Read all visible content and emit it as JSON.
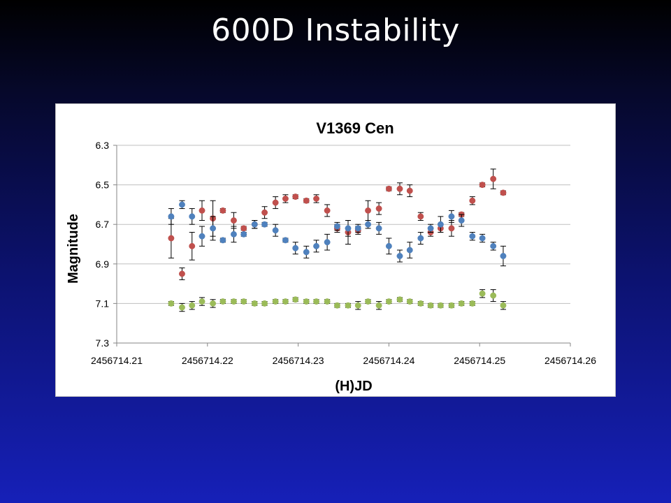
{
  "slide": {
    "title": "600D Instability"
  },
  "chart_data": {
    "type": "scatter",
    "title": "V1369 Cen",
    "xlabel": "(H)JD",
    "ylabel": "Magnitude",
    "xlim": [
      2456714.21,
      2456714.26
    ],
    "ylim": [
      6.3,
      7.3
    ],
    "y_inverted": true,
    "x_ticks": [
      2456714.21,
      2456714.22,
      2456714.23,
      2456714.24,
      2456714.25,
      2456714.26
    ],
    "x_tick_labels": [
      "2456714.21",
      "2456714.22",
      "2456714.23",
      "2456714.24",
      "2456714.25",
      "2456714.26"
    ],
    "y_ticks": [
      6.3,
      6.5,
      6.7,
      6.9,
      7.1,
      7.3
    ],
    "y_tick_labels": [
      "6.3",
      "6.5",
      "6.7",
      "6.9",
      "7.1",
      "7.3"
    ],
    "grid": "horizontal",
    "legend": "none",
    "colors": {
      "red": "#c0504d",
      "blue": "#4f81bd",
      "green": "#9bbb59"
    },
    "series": [
      {
        "color_key": "red",
        "x": [
          2456714.216,
          2456714.2172,
          2456714.2183,
          2456714.2194,
          2456714.2206,
          2456714.2217,
          2456714.2229,
          2456714.224,
          2456714.2252,
          2456714.2263,
          2456714.2275,
          2456714.2286,
          2456714.2297,
          2456714.2309,
          2456714.232,
          2456714.2332,
          2456714.2343,
          2456714.2355,
          2456714.2366,
          2456714.2377,
          2456714.2389,
          2456714.24,
          2456714.2412,
          2456714.2423,
          2456714.2435,
          2456714.2446,
          2456714.2457,
          2456714.2469,
          2456714.248,
          2456714.2492,
          2456714.2503,
          2456714.2515,
          2456714.2526
        ],
        "y": [
          6.77,
          6.95,
          6.81,
          6.63,
          6.67,
          6.63,
          6.68,
          6.72,
          6.7,
          6.64,
          6.59,
          6.57,
          6.56,
          6.58,
          6.57,
          6.63,
          6.72,
          6.74,
          6.73,
          6.63,
          6.62,
          6.52,
          6.52,
          6.53,
          6.66,
          6.74,
          6.72,
          6.72,
          6.65,
          6.58,
          6.5,
          6.47,
          6.54
        ],
        "err": [
          0.1,
          0.03,
          0.07,
          0.05,
          0.09,
          0.01,
          0.04,
          0.01,
          0.02,
          0.03,
          0.03,
          0.02,
          0.01,
          0.01,
          0.02,
          0.03,
          0.02,
          0.06,
          0.02,
          0.05,
          0.03,
          0.01,
          0.03,
          0.03,
          0.02,
          0.02,
          0.02,
          0.04,
          0.01,
          0.02,
          0.01,
          0.05,
          0.01
        ]
      },
      {
        "color_key": "blue",
        "x": [
          2456714.216,
          2456714.2172,
          2456714.2183,
          2456714.2194,
          2456714.2206,
          2456714.2217,
          2456714.2229,
          2456714.224,
          2456714.2252,
          2456714.2263,
          2456714.2275,
          2456714.2286,
          2456714.2297,
          2456714.2309,
          2456714.232,
          2456714.2332,
          2456714.2343,
          2456714.2355,
          2456714.2366,
          2456714.2377,
          2456714.2389,
          2456714.24,
          2456714.2412,
          2456714.2423,
          2456714.2435,
          2456714.2446,
          2456714.2457,
          2456714.2469,
          2456714.248,
          2456714.2492,
          2456714.2503,
          2456714.2515,
          2456714.2526
        ],
        "y": [
          6.66,
          6.6,
          6.66,
          6.76,
          6.72,
          6.78,
          6.75,
          6.75,
          6.7,
          6.7,
          6.73,
          6.78,
          6.82,
          6.84,
          6.81,
          6.79,
          6.71,
          6.72,
          6.72,
          6.7,
          6.72,
          6.81,
          6.86,
          6.83,
          6.77,
          6.72,
          6.7,
          6.66,
          6.68,
          6.76,
          6.77,
          6.81,
          6.86
        ],
        "err": [
          0.04,
          0.02,
          0.04,
          0.05,
          0.06,
          0.01,
          0.04,
          0.01,
          0.02,
          0.01,
          0.03,
          0.01,
          0.03,
          0.03,
          0.03,
          0.04,
          0.02,
          0.04,
          0.02,
          0.02,
          0.03,
          0.04,
          0.03,
          0.04,
          0.03,
          0.02,
          0.04,
          0.03,
          0.03,
          0.02,
          0.02,
          0.02,
          0.05
        ]
      },
      {
        "color_key": "green",
        "x": [
          2456714.216,
          2456714.2172,
          2456714.2183,
          2456714.2194,
          2456714.2206,
          2456714.2217,
          2456714.2229,
          2456714.224,
          2456714.2252,
          2456714.2263,
          2456714.2275,
          2456714.2286,
          2456714.2297,
          2456714.2309,
          2456714.232,
          2456714.2332,
          2456714.2343,
          2456714.2355,
          2456714.2366,
          2456714.2377,
          2456714.2389,
          2456714.24,
          2456714.2412,
          2456714.2423,
          2456714.2435,
          2456714.2446,
          2456714.2457,
          2456714.2469,
          2456714.248,
          2456714.2492,
          2456714.2503,
          2456714.2515,
          2456714.2526
        ],
        "y": [
          7.1,
          7.12,
          7.11,
          7.09,
          7.1,
          7.09,
          7.09,
          7.09,
          7.1,
          7.1,
          7.09,
          7.09,
          7.08,
          7.09,
          7.09,
          7.09,
          7.11,
          7.11,
          7.11,
          7.09,
          7.11,
          7.09,
          7.08,
          7.09,
          7.1,
          7.11,
          7.11,
          7.11,
          7.1,
          7.1,
          7.05,
          7.06,
          7.11
        ],
        "err": [
          0.01,
          0.02,
          0.02,
          0.02,
          0.02,
          0.01,
          0.01,
          0.01,
          0.01,
          0.01,
          0.01,
          0.01,
          0.01,
          0.01,
          0.01,
          0.01,
          0.01,
          0.01,
          0.02,
          0.01,
          0.02,
          0.01,
          0.01,
          0.01,
          0.01,
          0.01,
          0.01,
          0.01,
          0.01,
          0.01,
          0.02,
          0.03,
          0.02
        ]
      }
    ]
  }
}
